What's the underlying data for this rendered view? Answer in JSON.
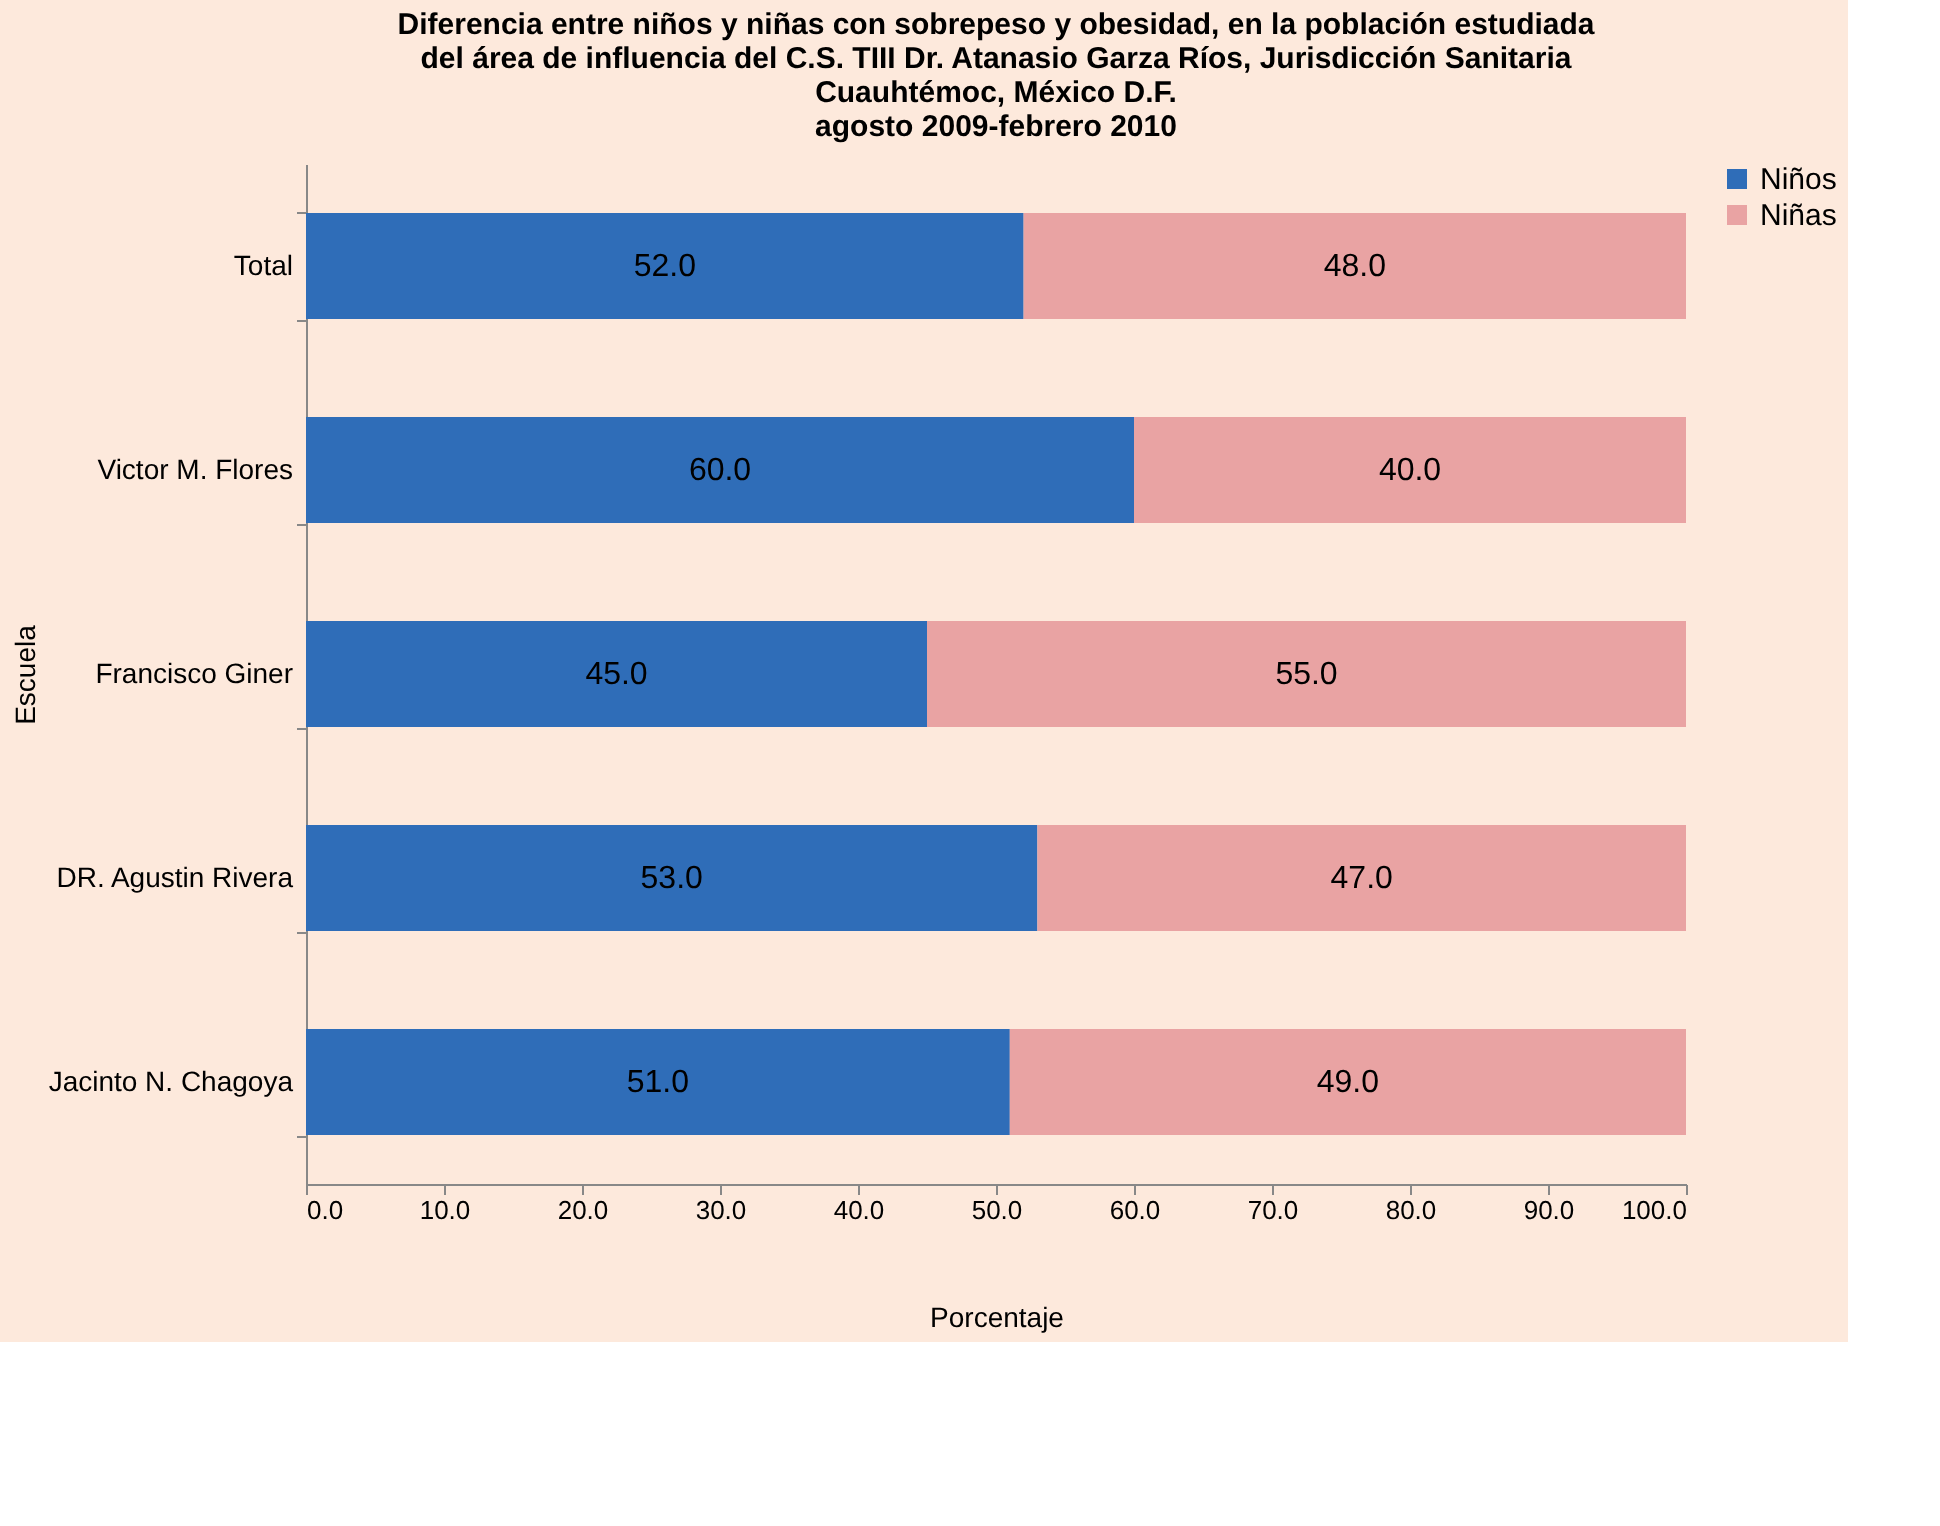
{
  "chart_data": {
    "type": "bar",
    "orientation": "horizontal",
    "stacked": true,
    "title": "Diferencia entre niños y niñas con sobrepeso y obesidad, en la población estudiada\ndel área de influencia del C.S. TIII Dr. Atanasio Garza Ríos, Jurisdicción Sanitaria\nCuauhtémoc,  México D.F.",
    "subtitle": "agosto 2009-febrero 2010",
    "xlabel": "Porcentaje",
    "ylabel": "Escuela",
    "categories": [
      "Total",
      "Victor M. Flores",
      "Francisco Giner",
      "DR. Agustin Rivera",
      "Jacinto N. Chagoya"
    ],
    "series": [
      {
        "name": "Niños",
        "color": "#2f6db8",
        "values": [
          52.0,
          60.0,
          45.0,
          53.0,
          51.0
        ],
        "value_labels": [
          "52.0",
          "60.0",
          "45.0",
          "53.0",
          "51.0"
        ]
      },
      {
        "name": "Niñas",
        "color": "#e9a3a3",
        "values": [
          48.0,
          40.0,
          55.0,
          47.0,
          49.0
        ],
        "value_labels": [
          "48.0",
          "40.0",
          "55.0",
          "47.0",
          "49.0"
        ]
      }
    ],
    "xlim": [
      0,
      100
    ],
    "xticks": [
      {
        "value": 0,
        "label": "0.0"
      },
      {
        "value": 10,
        "label": "10.0"
      },
      {
        "value": 20,
        "label": "20.0"
      },
      {
        "value": 30,
        "label": "30.0"
      },
      {
        "value": 40,
        "label": "40.0"
      },
      {
        "value": 50,
        "label": "50.0"
      },
      {
        "value": 60,
        "label": "60.0"
      },
      {
        "value": 70,
        "label": "70.0"
      },
      {
        "value": 80,
        "label": "80.0"
      },
      {
        "value": 90,
        "label": "90.0"
      },
      {
        "value": 100,
        "label": "100.0"
      }
    ],
    "grid": false,
    "legend": "right"
  }
}
